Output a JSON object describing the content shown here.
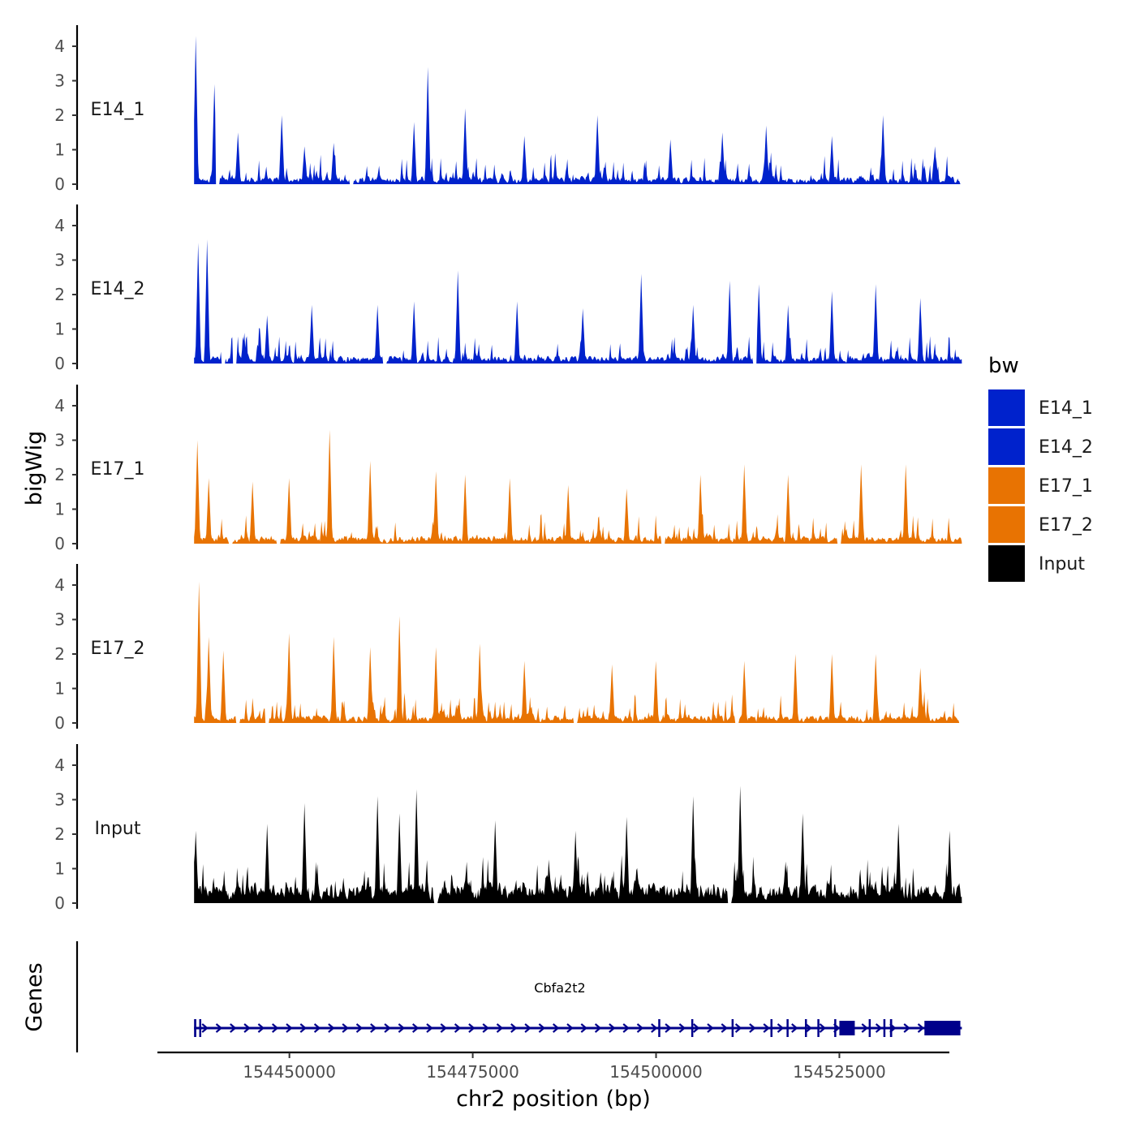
{
  "chart_data": {
    "type": "area",
    "y_axis_title": "bigWig",
    "x_axis_title": "chr2 position (bp)",
    "x_range": [
      154432000,
      154540000
    ],
    "x_ticks": [
      154450000,
      154475000,
      154500000,
      154525000
    ],
    "x_tick_labels": [
      "154450000",
      "154475000",
      "154500000",
      "154525000"
    ],
    "y_range": [
      0,
      4.5
    ],
    "y_ticks": [
      0,
      1,
      2,
      3,
      4
    ],
    "y_tick_labels": [
      "0",
      "1",
      "2",
      "3",
      "4"
    ],
    "tracks": [
      {
        "name": "E14_1",
        "color": "#0022CC",
        "data_x_range": [
          154437000,
          154541500
        ],
        "peaks": [
          {
            "x": 154437200,
            "y": 4.3
          },
          {
            "x": 154439800,
            "y": 2.9
          },
          {
            "x": 154443000,
            "y": 1.5
          },
          {
            "x": 154449000,
            "y": 2.0
          },
          {
            "x": 154452000,
            "y": 1.1
          },
          {
            "x": 154456000,
            "y": 1.2
          },
          {
            "x": 154467000,
            "y": 1.8
          },
          {
            "x": 154468900,
            "y": 3.4
          },
          {
            "x": 154474000,
            "y": 2.2
          },
          {
            "x": 154482000,
            "y": 1.4
          },
          {
            "x": 154492000,
            "y": 2.0
          },
          {
            "x": 154502000,
            "y": 1.3
          },
          {
            "x": 154509000,
            "y": 1.5
          },
          {
            "x": 154515000,
            "y": 1.7
          },
          {
            "x": 154524000,
            "y": 1.4
          },
          {
            "x": 154531000,
            "y": 2.0
          },
          {
            "x": 154538000,
            "y": 1.1
          }
        ],
        "gaps": [
          154440200,
          154458500
        ]
      },
      {
        "name": "E14_2",
        "color": "#0022CC",
        "data_x_range": [
          154437000,
          154541700
        ],
        "peaks": [
          {
            "x": 154437500,
            "y": 3.5
          },
          {
            "x": 154438800,
            "y": 3.6
          },
          {
            "x": 154447000,
            "y": 1.4
          },
          {
            "x": 154453000,
            "y": 1.7
          },
          {
            "x": 154462000,
            "y": 1.7
          },
          {
            "x": 154467000,
            "y": 1.8
          },
          {
            "x": 154473000,
            "y": 2.7
          },
          {
            "x": 154481000,
            "y": 1.8
          },
          {
            "x": 154490000,
            "y": 1.6
          },
          {
            "x": 154498000,
            "y": 2.6
          },
          {
            "x": 154505000,
            "y": 1.7
          },
          {
            "x": 154510000,
            "y": 2.4
          },
          {
            "x": 154514000,
            "y": 2.3
          },
          {
            "x": 154518000,
            "y": 1.7
          },
          {
            "x": 154524000,
            "y": 2.1
          },
          {
            "x": 154530000,
            "y": 2.3
          },
          {
            "x": 154536000,
            "y": 1.9
          }
        ],
        "gaps": [
          154441000,
          154442500,
          154463000,
          154513500
        ]
      },
      {
        "name": "E17_1",
        "color": "#E87302",
        "data_x_range": [
          154437000,
          154541700
        ],
        "peaks": [
          {
            "x": 154437400,
            "y": 3.0
          },
          {
            "x": 154439000,
            "y": 1.9
          },
          {
            "x": 154445000,
            "y": 1.8
          },
          {
            "x": 154450000,
            "y": 1.9
          },
          {
            "x": 154455500,
            "y": 3.3
          },
          {
            "x": 154461000,
            "y": 2.4
          },
          {
            "x": 154470000,
            "y": 2.1
          },
          {
            "x": 154474000,
            "y": 2.0
          },
          {
            "x": 154480000,
            "y": 1.9
          },
          {
            "x": 154488000,
            "y": 1.7
          },
          {
            "x": 154496000,
            "y": 1.6
          },
          {
            "x": 154506000,
            "y": 2.0
          },
          {
            "x": 154512000,
            "y": 2.3
          },
          {
            "x": 154518000,
            "y": 2.0
          },
          {
            "x": 154528000,
            "y": 2.3
          },
          {
            "x": 154534000,
            "y": 2.3
          }
        ],
        "gaps": [
          154442000,
          154448500,
          154501000,
          154525000
        ]
      },
      {
        "name": "E17_2",
        "color": "#E87302",
        "data_x_range": [
          154437000,
          154541300
        ],
        "peaks": [
          {
            "x": 154437700,
            "y": 4.1
          },
          {
            "x": 154439000,
            "y": 2.5
          },
          {
            "x": 154441000,
            "y": 2.1
          },
          {
            "x": 154450000,
            "y": 2.6
          },
          {
            "x": 154456000,
            "y": 2.5
          },
          {
            "x": 154461000,
            "y": 2.2
          },
          {
            "x": 154465000,
            "y": 3.1
          },
          {
            "x": 154470000,
            "y": 2.2
          },
          {
            "x": 154476000,
            "y": 2.3
          },
          {
            "x": 154482000,
            "y": 1.8
          },
          {
            "x": 154494000,
            "y": 1.7
          },
          {
            "x": 154500000,
            "y": 1.8
          },
          {
            "x": 154512000,
            "y": 1.8
          },
          {
            "x": 154519000,
            "y": 2.0
          },
          {
            "x": 154524000,
            "y": 2.0
          },
          {
            "x": 154530000,
            "y": 2.0
          },
          {
            "x": 154536000,
            "y": 1.6
          }
        ],
        "gaps": [
          154443000,
          154447000,
          154489000,
          154511000
        ]
      },
      {
        "name": "Input",
        "color": "#000000",
        "data_x_range": [
          154437000,
          154541700
        ],
        "peaks": [
          {
            "x": 154437200,
            "y": 2.1
          },
          {
            "x": 154447000,
            "y": 2.3
          },
          {
            "x": 154452000,
            "y": 2.9
          },
          {
            "x": 154462000,
            "y": 3.1
          },
          {
            "x": 154465000,
            "y": 2.6
          },
          {
            "x": 154467300,
            "y": 3.3
          },
          {
            "x": 154478000,
            "y": 2.4
          },
          {
            "x": 154489000,
            "y": 2.1
          },
          {
            "x": 154496000,
            "y": 2.5
          },
          {
            "x": 154505000,
            "y": 3.1
          },
          {
            "x": 154511500,
            "y": 3.4
          },
          {
            "x": 154520000,
            "y": 2.6
          },
          {
            "x": 154533000,
            "y": 2.3
          },
          {
            "x": 154540000,
            "y": 2.1
          }
        ],
        "gaps": [
          154470000,
          154510000
        ]
      }
    ],
    "legend": {
      "title": "bw",
      "position": "right",
      "entries": [
        {
          "label": "E14_1",
          "color": "#0022CC"
        },
        {
          "label": "E14_2",
          "color": "#0022CC"
        },
        {
          "label": "E17_1",
          "color": "#E87302"
        },
        {
          "label": "E17_2",
          "color": "#E87302"
        },
        {
          "label": "Input",
          "color": "#000000"
        }
      ]
    },
    "genes_track": {
      "title": "Genes",
      "color": "#00008B",
      "genes": [
        {
          "name": "Cbfa2t2",
          "strand": "+",
          "start": 154437000,
          "end": 154541700,
          "exons": [
            [
              154437000,
              154437300
            ],
            [
              154437700,
              154437900
            ],
            [
              154500300,
              154500400
            ],
            [
              154504800,
              154504900
            ],
            [
              154510300,
              154510400
            ],
            [
              154515600,
              154515700
            ],
            [
              154517800,
              154517900
            ],
            [
              154520300,
              154520400
            ],
            [
              154522000,
              154522100
            ],
            [
              154524300,
              154524400
            ],
            [
              154525000,
              154527100
            ],
            [
              154529000,
              154529100
            ],
            [
              154531000,
              154531100
            ],
            [
              154531900,
              154532200
            ],
            [
              154536600,
              154541500
            ]
          ]
        }
      ]
    }
  }
}
